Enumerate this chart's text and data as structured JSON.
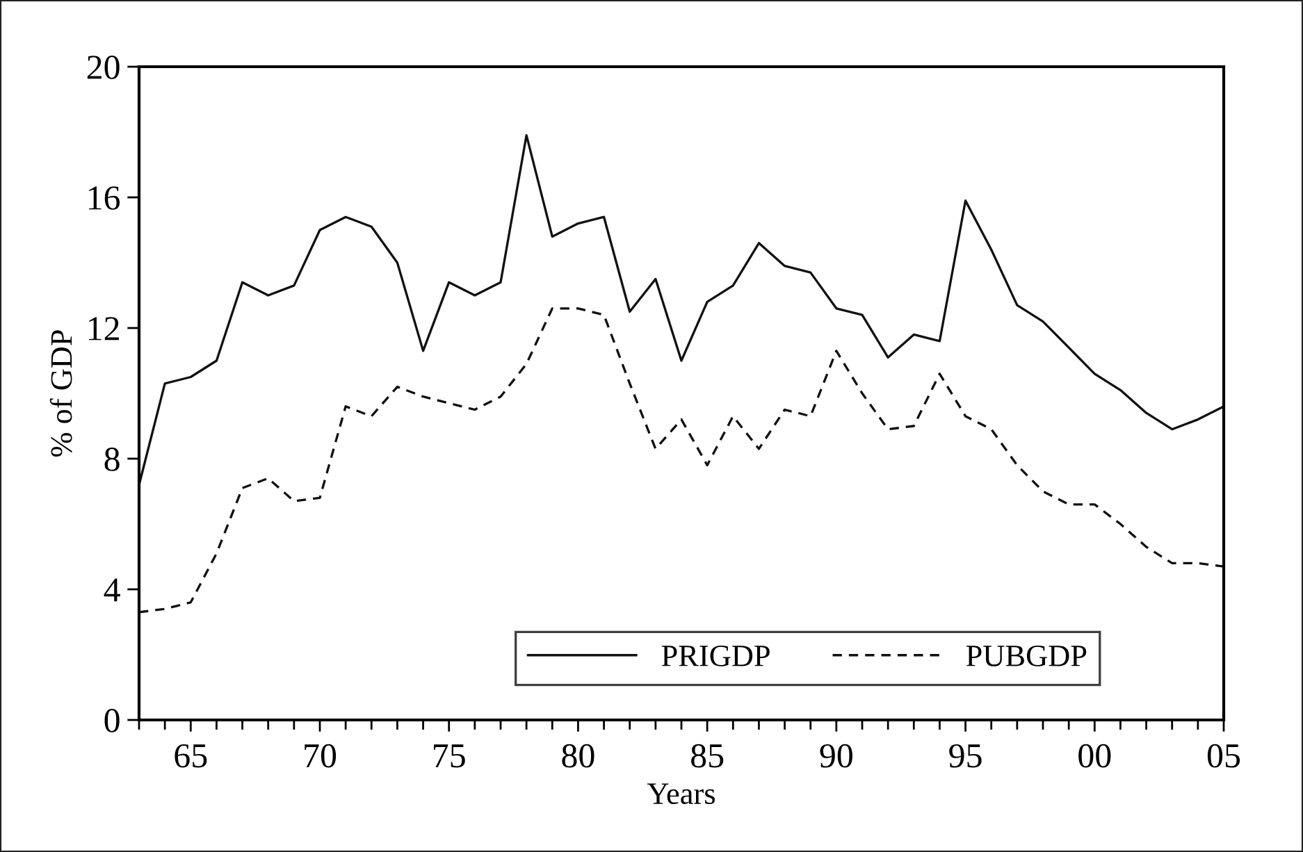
{
  "chart_data": {
    "type": "line",
    "xlabel": "Years",
    "ylabel": "% of GDP",
    "x": [
      1963,
      1964,
      1965,
      1966,
      1967,
      1968,
      1969,
      1970,
      1971,
      1972,
      1973,
      1974,
      1975,
      1976,
      1977,
      1978,
      1979,
      1980,
      1981,
      1982,
      1983,
      1984,
      1985,
      1986,
      1987,
      1988,
      1989,
      1990,
      1991,
      1992,
      1993,
      1994,
      1995,
      1996,
      1997,
      1998,
      1999,
      2000,
      2001,
      2002,
      2003,
      2004,
      2005
    ],
    "series": [
      {
        "name": "PRIGDP",
        "color": "#111111",
        "line_style": "solid",
        "values": [
          7.2,
          10.3,
          10.5,
          11.0,
          13.4,
          13.0,
          13.3,
          15.0,
          15.4,
          15.1,
          14.0,
          11.3,
          13.4,
          13.0,
          13.4,
          17.9,
          14.8,
          15.2,
          15.4,
          12.5,
          13.5,
          11.0,
          12.8,
          13.3,
          14.6,
          13.9,
          13.7,
          12.6,
          12.4,
          11.1,
          11.8,
          11.6,
          15.9,
          14.4,
          12.7,
          12.2,
          11.4,
          10.6,
          10.1,
          9.4,
          8.9,
          9.2,
          9.6
        ]
      },
      {
        "name": "PUBGDP",
        "color": "#111111",
        "line_style": "dashed",
        "values": [
          3.3,
          3.4,
          3.6,
          5.1,
          7.1,
          7.4,
          6.7,
          6.8,
          9.6,
          9.3,
          10.2,
          9.9,
          9.7,
          9.5,
          9.9,
          10.9,
          12.6,
          12.6,
          12.4,
          10.3,
          8.3,
          9.2,
          7.8,
          9.3,
          8.3,
          9.5,
          9.3,
          11.3,
          10.0,
          8.9,
          9.0,
          10.6,
          9.3,
          8.9,
          7.8,
          7.0,
          6.6,
          6.6,
          6.0,
          5.3,
          4.8,
          4.8,
          4.7
        ]
      }
    ],
    "xlim": [
      1963,
      2005
    ],
    "xticks": [
      {
        "value": 1965,
        "label": "65"
      },
      {
        "value": 1970,
        "label": "70"
      },
      {
        "value": 1975,
        "label": "75"
      },
      {
        "value": 1980,
        "label": "80"
      },
      {
        "value": 1985,
        "label": "85"
      },
      {
        "value": 1990,
        "label": "90"
      },
      {
        "value": 1995,
        "label": "95"
      },
      {
        "value": 2000,
        "label": "00"
      },
      {
        "value": 2005,
        "label": "05"
      }
    ],
    "ylim": [
      0,
      20
    ],
    "yticks": [
      0,
      4,
      8,
      12,
      16,
      20
    ],
    "grid": false,
    "legend": "bottom right"
  }
}
